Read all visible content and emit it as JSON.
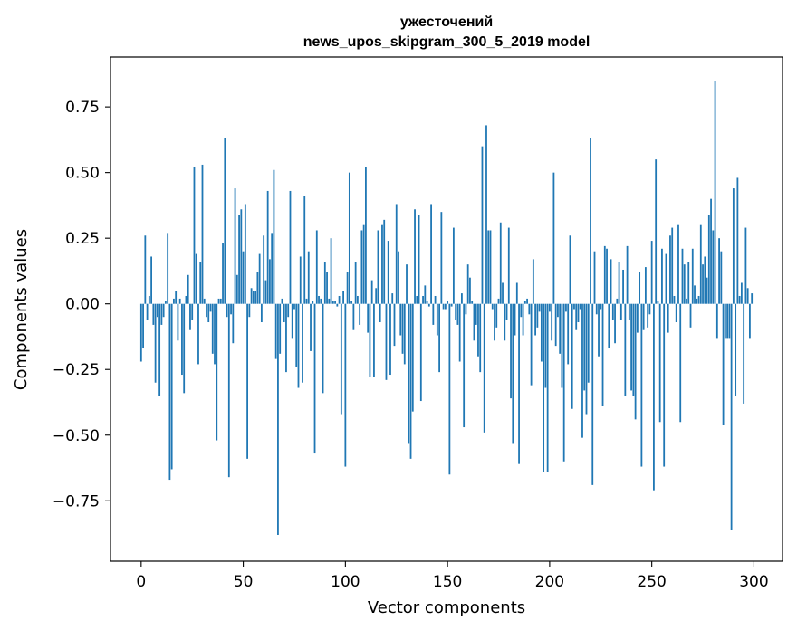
{
  "chart_data": {
    "type": "bar",
    "title": "ужесточений",
    "subtitle": "news_upos_skipgram_300_5_2019 model",
    "xlabel": "Vector components",
    "ylabel": "Components values",
    "xlim": [
      -15,
      314
    ],
    "ylim": [
      -0.98,
      0.94
    ],
    "xticks": [
      0,
      50,
      100,
      150,
      200,
      250,
      300
    ],
    "yticks": [
      -0.75,
      -0.5,
      -0.25,
      0.0,
      0.25,
      0.5,
      0.75
    ],
    "ytick_labels": [
      "−0.75",
      "−0.50",
      "−0.25",
      "0.00",
      "0.25",
      "0.50",
      "0.75"
    ],
    "bar_color": "#1f77b4",
    "values": [
      -0.22,
      -0.17,
      0.26,
      -0.06,
      0.03,
      0.18,
      -0.08,
      -0.3,
      -0.05,
      -0.35,
      -0.08,
      -0.05,
      0.01,
      0.27,
      -0.67,
      -0.63,
      0.02,
      0.05,
      -0.14,
      0.02,
      -0.27,
      -0.34,
      0.03,
      0.11,
      -0.1,
      -0.06,
      0.52,
      0.19,
      -0.23,
      0.16,
      0.53,
      0.02,
      -0.05,
      -0.07,
      -0.03,
      -0.19,
      -0.23,
      -0.52,
      0.02,
      0.02,
      0.23,
      0.63,
      -0.05,
      -0.66,
      -0.04,
      -0.15,
      0.44,
      0.11,
      0.34,
      0.36,
      0.2,
      0.38,
      -0.59,
      -0.05,
      0.06,
      0.05,
      0.05,
      0.12,
      0.19,
      -0.07,
      0.26,
      0.09,
      0.43,
      0.17,
      0.27,
      0.51,
      -0.21,
      -0.88,
      -0.19,
      0.02,
      -0.07,
      -0.26,
      -0.05,
      0.43,
      -0.13,
      -0.02,
      -0.24,
      -0.32,
      0.18,
      -0.3,
      0.41,
      0.02,
      0.2,
      -0.18,
      0.01,
      -0.57,
      0.28,
      0.03,
      0.02,
      -0.34,
      0.16,
      0.12,
      0.02,
      0.25,
      0.01,
      0.01,
      -0.01,
      0.03,
      -0.42,
      0.05,
      -0.62,
      0.12,
      0.5,
      0.01,
      -0.1,
      0.16,
      0.03,
      -0.08,
      0.28,
      0.3,
      0.52,
      -0.11,
      -0.28,
      0.09,
      -0.28,
      0.06,
      0.28,
      -0.07,
      0.3,
      0.32,
      -0.29,
      0.24,
      -0.27,
      0.04,
      -0.16,
      0.38,
      0.2,
      -0.12,
      -0.19,
      -0.23,
      0.15,
      -0.53,
      -0.59,
      -0.41,
      0.36,
      0.03,
      0.34,
      -0.37,
      0.03,
      0.07,
      0.01,
      -0.01,
      0.38,
      -0.08,
      0.03,
      -0.12,
      -0.26,
      0.35,
      -0.02,
      -0.02,
      0.01,
      -0.65,
      -0.01,
      0.29,
      -0.06,
      -0.08,
      -0.22,
      0.04,
      -0.47,
      -0.04,
      0.15,
      0.1,
      0.01,
      -0.14,
      -0.08,
      -0.2,
      -0.26,
      0.6,
      -0.49,
      0.68,
      0.28,
      0.28,
      -0.02,
      -0.14,
      -0.09,
      0.02,
      0.31,
      0.08,
      -0.14,
      -0.06,
      0.29,
      -0.36,
      -0.53,
      -0.12,
      0.08,
      -0.61,
      -0.05,
      -0.12,
      0.01,
      0.02,
      -0.04,
      -0.31,
      0.17,
      -0.12,
      -0.09,
      -0.03,
      -0.22,
      -0.64,
      -0.32,
      -0.64,
      -0.03,
      -0.14,
      0.5,
      -0.16,
      -0.05,
      -0.19,
      -0.32,
      -0.6,
      -0.03,
      -0.23,
      0.26,
      -0.4,
      -0.02,
      -0.1,
      -0.07,
      -0.02,
      -0.51,
      -0.33,
      -0.42,
      -0.3,
      0.63,
      -0.69,
      0.2,
      -0.04,
      -0.2,
      -0.02,
      -0.39,
      0.22,
      0.21,
      -0.17,
      0.17,
      -0.06,
      -0.15,
      0.02,
      0.16,
      -0.06,
      0.13,
      -0.35,
      0.22,
      -0.06,
      -0.33,
      -0.35,
      -0.44,
      -0.11,
      0.12,
      -0.62,
      -0.1,
      0.14,
      -0.09,
      -0.04,
      0.24,
      -0.71,
      0.55,
      0.01,
      -0.45,
      0.21,
      -0.62,
      0.19,
      -0.11,
      0.26,
      0.29,
      0.03,
      -0.07,
      0.3,
      -0.45,
      0.21,
      0.15,
      0.02,
      0.16,
      -0.09,
      0.21,
      0.07,
      0.02,
      0.03,
      0.3,
      0.15,
      0.18,
      0.1,
      0.34,
      0.4,
      0.28,
      0.85,
      -0.13,
      0.25,
      0.2,
      -0.46,
      -0.13,
      -0.13,
      -0.13,
      -0.86,
      0.44,
      -0.35,
      0.48,
      0.03,
      0.08,
      -0.38,
      0.29,
      0.06,
      -0.13,
      0.04
    ]
  }
}
